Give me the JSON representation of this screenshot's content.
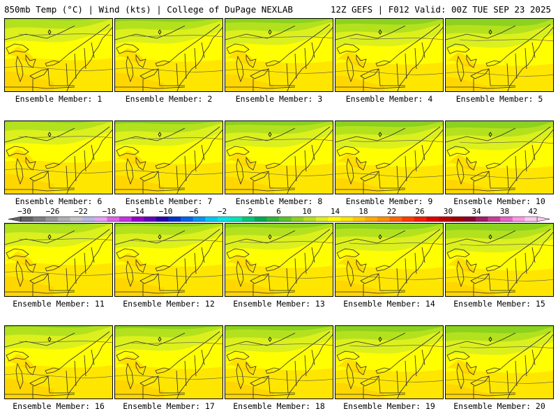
{
  "header": {
    "left": "850mb Temp (°C) | Wind (kts) | College of DuPage NEXLAB",
    "right": "12Z GEFS | F012 Valid: 00Z TUE SEP 23 2025"
  },
  "members": [
    {
      "label": "Ensemble Member: 1"
    },
    {
      "label": "Ensemble Member: 2"
    },
    {
      "label": "Ensemble Member: 3"
    },
    {
      "label": "Ensemble Member: 4"
    },
    {
      "label": "Ensemble Member: 5"
    },
    {
      "label": "Ensemble Member: 6"
    },
    {
      "label": "Ensemble Member: 7"
    },
    {
      "label": "Ensemble Member: 8"
    },
    {
      "label": "Ensemble Member: 9"
    },
    {
      "label": "Ensemble Member: 10"
    },
    {
      "label": "Ensemble Member: 11"
    },
    {
      "label": "Ensemble Member: 12"
    },
    {
      "label": "Ensemble Member: 13"
    },
    {
      "label": "Ensemble Member: 14"
    },
    {
      "label": "Ensemble Member: 15"
    },
    {
      "label": "Ensemble Member: 16"
    },
    {
      "label": "Ensemble Member: 17"
    },
    {
      "label": "Ensemble Member: 18"
    },
    {
      "label": "Ensemble Member: 19"
    },
    {
      "label": "Ensemble Member: 20"
    }
  ],
  "colorbar": {
    "ticks": [
      "-30",
      "-26",
      "-22",
      "-18",
      "-14",
      "-10",
      "-6",
      "-2",
      "2",
      "6",
      "10",
      "14",
      "18",
      "22",
      "26",
      "30",
      "34",
      "38",
      "42"
    ],
    "colors": [
      "#646464",
      "#7d7d7d",
      "#969696",
      "#afafaf",
      "#c3c3c3",
      "#b4b4e6",
      "#e6a0f0",
      "#dc64e6",
      "#c832dc",
      "#9600c8",
      "#6400b4",
      "#2800aa",
      "#0032c8",
      "#0064e6",
      "#0096f0",
      "#00c8f0",
      "#00e6e6",
      "#00e6b4",
      "#00c878",
      "#00aa50",
      "#32b432",
      "#5ac328",
      "#8cd21e",
      "#b4e11e",
      "#dcf01e",
      "#ffff00",
      "#ffe600",
      "#ffc800",
      "#ffaa00",
      "#ff8c00",
      "#ff6400",
      "#ff3c00",
      "#f01e00",
      "#dc0000",
      "#be0000",
      "#a00000",
      "#8c0028",
      "#a01e64",
      "#c83c96",
      "#e664c8",
      "#ff96e6",
      "#ffc8f0"
    ]
  },
  "palette": {
    "green": "#8cd21e",
    "lightgreen": "#b4e11e",
    "yellowgreen": "#dcf01e",
    "yellow": "#ffff00",
    "gold": "#ffe600",
    "orange": "#ffc800"
  }
}
